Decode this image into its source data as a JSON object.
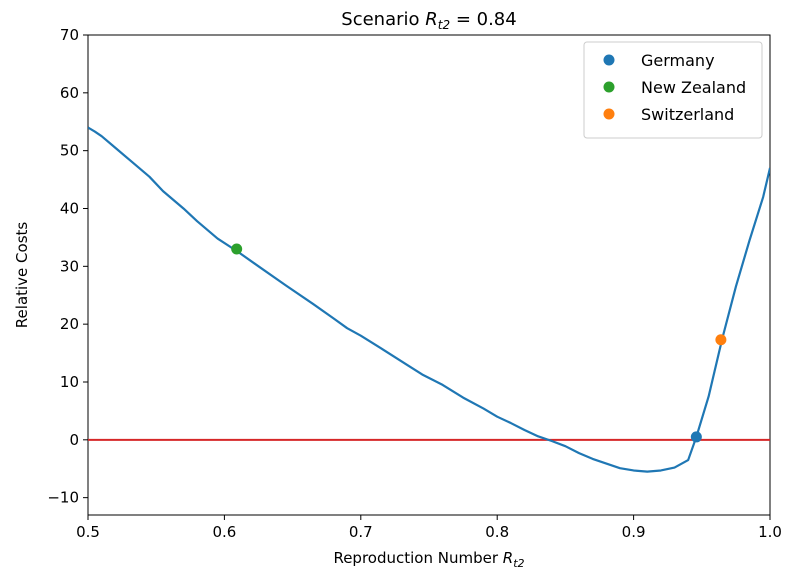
{
  "chart_data": {
    "type": "line",
    "title_main": "Scenario ",
    "title_var": "R",
    "title_sub": "t2",
    "title_value": " = 0.84",
    "xlabel_main": "Reproduction Number ",
    "xlabel_var": "R",
    "xlabel_sub": "t2",
    "ylabel": "Relative Costs",
    "xlim": [
      0.5,
      1.0
    ],
    "ylim": [
      -13,
      70
    ],
    "xticks": [
      0.5,
      0.6,
      0.7,
      0.8,
      0.9,
      1.0
    ],
    "xtick_labels": [
      "0.5",
      "0.6",
      "0.7",
      "0.8",
      "0.9",
      "1.0"
    ],
    "yticks": [
      -10,
      0,
      10,
      20,
      30,
      40,
      50,
      60,
      70
    ],
    "ytick_labels": [
      "−10",
      "0",
      "10",
      "20",
      "30",
      "40",
      "50",
      "60",
      "70"
    ],
    "grid": false,
    "legend_position": "top-right",
    "series": [
      {
        "color": "#1f77b4",
        "x": [
          0.5,
          0.505,
          0.51,
          0.52,
          0.53,
          0.545,
          0.555,
          0.57,
          0.58,
          0.595,
          0.61,
          0.625,
          0.645,
          0.665,
          0.68,
          0.69,
          0.7,
          0.715,
          0.735,
          0.745,
          0.76,
          0.775,
          0.79,
          0.8,
          0.81,
          0.82,
          0.83,
          0.84,
          0.85,
          0.86,
          0.87,
          0.88,
          0.89,
          0.9,
          0.91,
          0.92,
          0.93,
          0.94,
          0.946,
          0.955,
          0.965,
          0.975,
          0.985,
          0.995,
          1.0
        ],
        "y": [
          54.0,
          53.3,
          52.5,
          50.5,
          48.5,
          45.5,
          43.0,
          40.0,
          37.8,
          34.8,
          32.5,
          30.0,
          26.7,
          23.5,
          21.0,
          19.3,
          18.0,
          15.8,
          12.8,
          11.3,
          9.5,
          7.3,
          5.4,
          4.0,
          2.9,
          1.7,
          0.6,
          -0.2,
          -1.1,
          -2.3,
          -3.3,
          -4.1,
          -4.9,
          -5.3,
          -5.5,
          -5.3,
          -4.8,
          -3.5,
          0.5,
          7.5,
          17.5,
          26.5,
          34.5,
          42.0,
          47.0
        ]
      }
    ],
    "reference_line": {
      "y": 0,
      "color": "#d62728"
    },
    "points": [
      {
        "name": "Germany",
        "x": 0.946,
        "y": 0.5,
        "color": "#1f77b4"
      },
      {
        "name": "New Zealand",
        "x": 0.609,
        "y": 33.0,
        "color": "#2ca02c"
      },
      {
        "name": "Switzerland",
        "x": 0.964,
        "y": 17.3,
        "color": "#ff7f0e"
      }
    ]
  }
}
